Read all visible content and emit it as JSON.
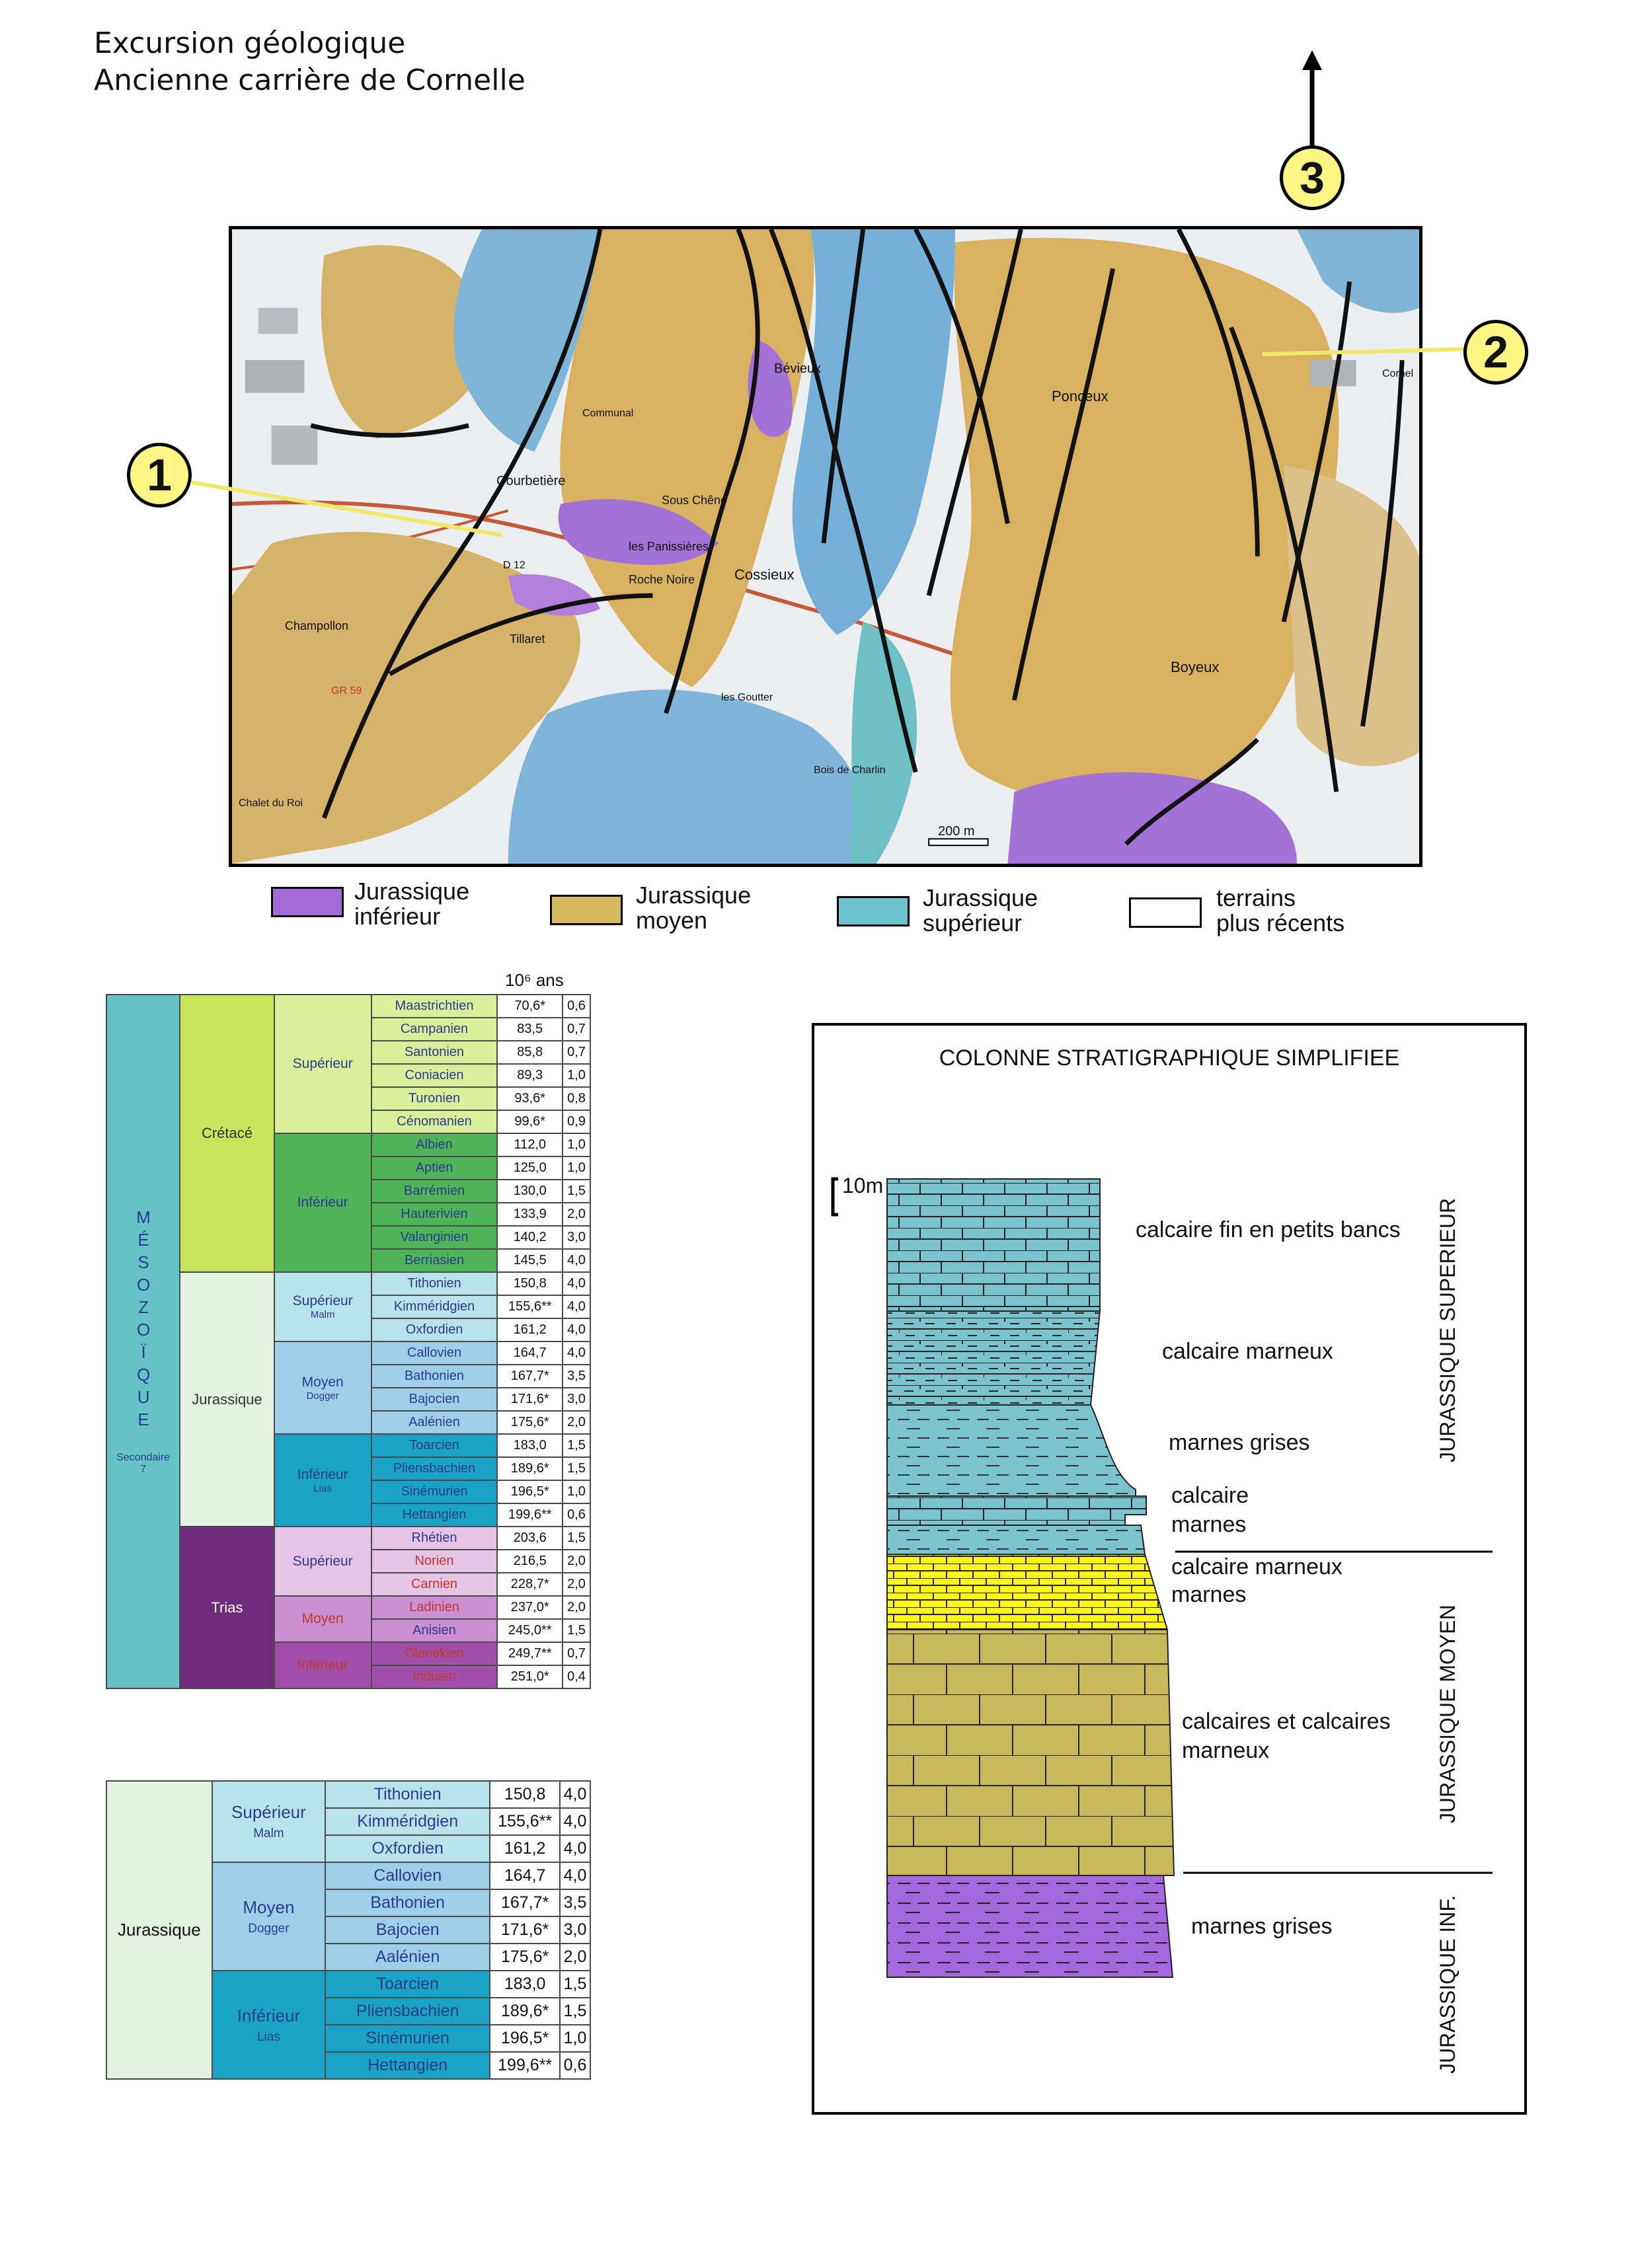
{
  "header": {
    "line1": "Excursion géologique",
    "line2": "Ancienne carrière de Cornelle"
  },
  "map": {
    "scale": "200 m",
    "callouts": [
      "1",
      "2",
      "3"
    ],
    "place_names": [
      "Courbetière",
      "Cossieux",
      "Roche Noire",
      "Champollon",
      "Tillaret",
      "les Panissières",
      "Ponceux",
      "Boyeux",
      "Bois de Charlin",
      "Bévieux",
      "Cornel",
      "les Goutter",
      "Chalet du Roi",
      "D 12",
      "GR 59",
      "Sous Chêne",
      "Communal"
    ],
    "north_arrow": "north-arrow-icon"
  },
  "legend": [
    {
      "l1": "Jurassique",
      "l2": "inférieur",
      "color": "#a56ad8"
    },
    {
      "l1": "Jurassique",
      "l2": "moyen",
      "color": "#d9bb5f"
    },
    {
      "l1": "Jurassique",
      "l2": "supérieur",
      "color": "#6cc2cd"
    },
    {
      "l1": "terrains",
      "l2": "plus récents",
      "color": "#ffffff"
    }
  ],
  "table1": {
    "unit_label": "10⁶ ans",
    "era": "MÉSOZOÏQUE",
    "era_sub": "Secondaire",
    "era_num": "7",
    "rows": [
      [
        "Maastrichtien",
        "70,6*",
        "0,6"
      ],
      [
        "Campanien",
        "83,5",
        "0,7"
      ],
      [
        "Santonien",
        "85,8",
        "0,7"
      ],
      [
        "Coniacien",
        "89,3",
        "1,0"
      ],
      [
        "Turonien",
        "93,6*",
        "0,8"
      ],
      [
        "Cénomanien",
        "99,6*",
        "0,9"
      ],
      [
        "Albien",
        "112,0",
        "1,0"
      ],
      [
        "Aptien",
        "125,0",
        "1,0"
      ],
      [
        "Barrémien",
        "130,0",
        "1,5"
      ],
      [
        "Hauterivien",
        "133,9",
        "2,0"
      ],
      [
        "Valanginien",
        "140,2",
        "3,0"
      ],
      [
        "Berriasien",
        "145,5",
        "4,0"
      ],
      [
        "Tithonien",
        "150,8",
        "4,0"
      ],
      [
        "Kimméridgien",
        "155,6**",
        "4,0"
      ],
      [
        "Oxfordien",
        "161,2",
        "4,0"
      ],
      [
        "Callovien",
        "164,7",
        "4,0"
      ],
      [
        "Bathonien",
        "167,7*",
        "3,5"
      ],
      [
        "Bajocien",
        "171,6*",
        "3,0"
      ],
      [
        "Aalénien",
        "175,6*",
        "2,0"
      ],
      [
        "Toarcien",
        "183,0",
        "1,5"
      ],
      [
        "Pliensbachien",
        "189,6*",
        "1,5"
      ],
      [
        "Sinémurien",
        "196,5*",
        "1,0"
      ],
      [
        "Hettangien",
        "199,6**",
        "0,6"
      ],
      [
        "Rhétien",
        "203,6",
        "1,5"
      ],
      [
        "Norien",
        "216,5",
        "2,0"
      ],
      [
        "Carnien",
        "228,7*",
        "2,0"
      ],
      [
        "Ladinien",
        "237,0*",
        "2,0"
      ],
      [
        "Anisien",
        "245,0**",
        "1,5"
      ],
      [
        "Olénékien",
        "249,7**",
        "0,7"
      ],
      [
        "Induien",
        "251,0*",
        "0,4"
      ]
    ],
    "systems": [
      "Crétacé",
      "Jurassique",
      "Trias"
    ],
    "series": [
      {
        "name": "Supérieur",
        "sub": ""
      },
      {
        "name": "Inférieur",
        "sub": ""
      },
      {
        "name": "Supérieur",
        "sub": "Malm"
      },
      {
        "name": "Moyen",
        "sub": "Dogger"
      },
      {
        "name": "Inférieur",
        "sub": "Lias"
      },
      {
        "name": "Supérieur",
        "sub": ""
      },
      {
        "name": "Moyen",
        "sub": ""
      },
      {
        "name": "Inférieur",
        "sub": ""
      }
    ]
  },
  "table2": {
    "system": "Jurassique",
    "series": [
      {
        "name": "Supérieur",
        "sub": "Malm"
      },
      {
        "name": "Moyen",
        "sub": "Dogger"
      },
      {
        "name": "Inférieur",
        "sub": "Lias"
      }
    ],
    "rows": [
      [
        "Tithonien",
        "150,8",
        "4,0"
      ],
      [
        "Kimméridgien",
        "155,6**",
        "4,0"
      ],
      [
        "Oxfordien",
        "161,2",
        "4,0"
      ],
      [
        "Callovien",
        "164,7",
        "4,0"
      ],
      [
        "Bathonien",
        "167,7*",
        "3,5"
      ],
      [
        "Bajocien",
        "171,6*",
        "3,0"
      ],
      [
        "Aalénien",
        "175,6*",
        "2,0"
      ],
      [
        "Toarcien",
        "183,0",
        "1,5"
      ],
      [
        "Pliensbachien",
        "189,6*",
        "1,5"
      ],
      [
        "Sinémurien",
        "196,5*",
        "1,0"
      ],
      [
        "Hettangien",
        "199,6**",
        "0,6"
      ]
    ]
  },
  "strat": {
    "title": "COLONNE STRATIGRAPHIQUE SIMPLIFIEE",
    "scale": "10m",
    "labels": [
      "calcaire fin en petits bancs",
      "calcaire marneux",
      "marnes grises",
      "calcaire",
      "marnes",
      "calcaire marneux",
      "marnes",
      "calcaires et calcaires",
      "marneux",
      "marnes grises"
    ],
    "sides": [
      "JURASSIQUE SUPERIEUR",
      "JURASSIQUE MOYEN",
      "JURASSIQUE INF."
    ]
  }
}
